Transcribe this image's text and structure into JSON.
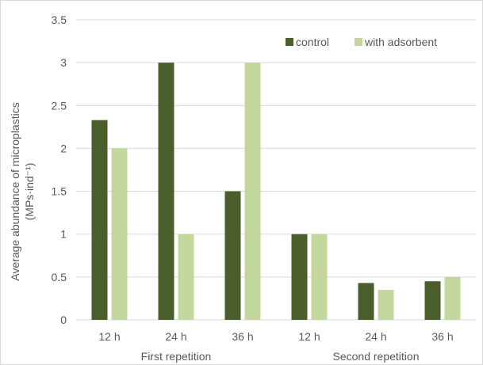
{
  "chart_data": {
    "type": "bar",
    "title": "",
    "xlabel": "",
    "ylabel": "Average abundance of microplastics",
    "ylabel_unit": "(MPs·ind⁻¹)",
    "ylim": [
      0,
      3.5
    ],
    "yticks": [
      "0",
      "0.5",
      "1",
      "1.5",
      "2",
      "2.5",
      "3",
      "3.5"
    ],
    "grid": "horizontal",
    "legend_position": "top-right",
    "categories": [
      "12 h",
      "24 h",
      "36 h",
      "12 h",
      "24 h",
      "36 h"
    ],
    "groups": [
      {
        "label": "First repetition",
        "span": 3
      },
      {
        "label": "Second repetition",
        "span": 3
      }
    ],
    "series": [
      {
        "name": "control",
        "color": "#4a5f2b",
        "values": [
          2.33,
          3.0,
          1.5,
          1.0,
          0.43,
          0.45
        ]
      },
      {
        "name": "with adsorbent",
        "color": "#c3d69b",
        "values": [
          2.0,
          1.0,
          3.0,
          1.0,
          0.35,
          0.5
        ]
      }
    ]
  }
}
